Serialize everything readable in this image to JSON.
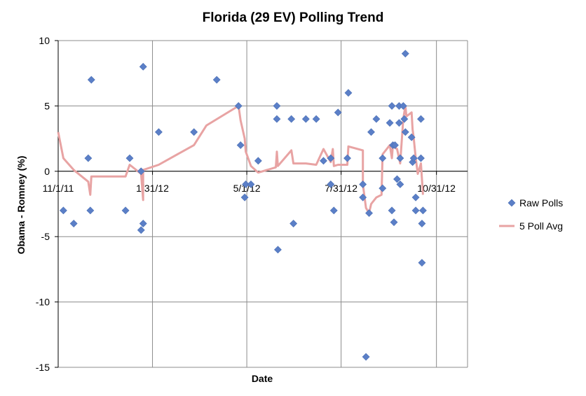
{
  "chart_data": {
    "type": "scatter",
    "title": "Florida (29 EV) Polling Trend",
    "xlabel": "Date",
    "ylabel": "Obama - Romney (%)",
    "ylim": [
      -15,
      10
    ],
    "y_ticks": [
      10,
      5,
      0,
      -5,
      -10,
      -15
    ],
    "y_tick_labels": [
      "10",
      "5",
      "0",
      "-5",
      "-10",
      "-15"
    ],
    "xlim": [
      "2011-11-01",
      "2012-11-30"
    ],
    "x_ticks": [
      "2011-11-01",
      "2012-01-31",
      "2012-05-01",
      "2012-07-31",
      "2012-10-31"
    ],
    "x_tick_labels": [
      "11/1/11",
      "1/31/12",
      "5/1/12",
      "7/31/12",
      "10/31/12"
    ],
    "grid": true,
    "legend_position": "right",
    "series": [
      {
        "name": "Raw Polls",
        "kind": "scatter",
        "color": "#5b7fc7",
        "points": [
          [
            "2011-11-06",
            -3
          ],
          [
            "2011-11-16",
            -4
          ],
          [
            "2011-11-30",
            1
          ],
          [
            "2011-12-02",
            -3
          ],
          [
            "2011-12-03",
            7
          ],
          [
            "2012-01-05",
            -3
          ],
          [
            "2012-01-09",
            1
          ],
          [
            "2012-01-20",
            0
          ],
          [
            "2012-01-20",
            -4.5
          ],
          [
            "2012-01-22",
            -4
          ],
          [
            "2012-01-22",
            8
          ],
          [
            "2012-02-06",
            3
          ],
          [
            "2012-03-11",
            3
          ],
          [
            "2012-04-02",
            7
          ],
          [
            "2012-04-23",
            5
          ],
          [
            "2012-04-25",
            2
          ],
          [
            "2012-04-29",
            -2
          ],
          [
            "2012-04-30",
            -1
          ],
          [
            "2012-05-05",
            -1
          ],
          [
            "2012-05-12",
            0.8
          ],
          [
            "2012-05-30",
            5
          ],
          [
            "2012-05-30",
            4
          ],
          [
            "2012-05-31",
            -6
          ],
          [
            "2012-06-13",
            4
          ],
          [
            "2012-06-15",
            -4
          ],
          [
            "2012-06-27",
            4
          ],
          [
            "2012-07-07",
            4
          ],
          [
            "2012-07-14",
            0.8
          ],
          [
            "2012-07-21",
            -1
          ],
          [
            "2012-07-21",
            1
          ],
          [
            "2012-07-24",
            -3
          ],
          [
            "2012-07-28",
            4.5
          ],
          [
            "2012-08-06",
            1
          ],
          [
            "2012-08-07",
            6
          ],
          [
            "2012-08-21",
            -1
          ],
          [
            "2012-08-21",
            -2
          ],
          [
            "2012-08-24",
            -14.2
          ],
          [
            "2012-08-27",
            -3.2
          ],
          [
            "2012-08-29",
            3
          ],
          [
            "2012-09-03",
            4
          ],
          [
            "2012-09-09",
            1
          ],
          [
            "2012-09-09",
            -1.3
          ],
          [
            "2012-09-16",
            3.7
          ],
          [
            "2012-09-18",
            -3
          ],
          [
            "2012-09-18",
            5
          ],
          [
            "2012-09-19",
            2
          ],
          [
            "2012-09-20",
            -3.9
          ],
          [
            "2012-09-21",
            2
          ],
          [
            "2012-09-23",
            -0.6
          ],
          [
            "2012-09-25",
            3.7
          ],
          [
            "2012-09-25",
            5
          ],
          [
            "2012-09-26",
            -1
          ],
          [
            "2012-09-26",
            1
          ],
          [
            "2012-09-29",
            5
          ],
          [
            "2012-09-30",
            4
          ],
          [
            "2012-10-01",
            3
          ],
          [
            "2012-10-01",
            9
          ],
          [
            "2012-10-07",
            2.6
          ],
          [
            "2012-10-08",
            0.7
          ],
          [
            "2012-10-09",
            1
          ],
          [
            "2012-10-11",
            -2
          ],
          [
            "2012-10-11",
            -3
          ],
          [
            "2012-10-16",
            1
          ],
          [
            "2012-10-16",
            4
          ],
          [
            "2012-10-17",
            -7
          ],
          [
            "2012-10-17",
            -4
          ],
          [
            "2012-10-18",
            -3
          ]
        ]
      },
      {
        "name": "5 Poll Avg",
        "kind": "line",
        "color": "#e8a3a3",
        "points": [
          [
            "2011-11-01",
            3
          ],
          [
            "2011-11-06",
            1
          ],
          [
            "2011-11-16",
            0.1
          ],
          [
            "2011-11-30",
            -0.8
          ],
          [
            "2011-12-02",
            -1.8
          ],
          [
            "2011-12-03",
            -0.4
          ],
          [
            "2012-01-05",
            -0.4
          ],
          [
            "2012-01-09",
            0.5
          ],
          [
            "2012-01-20",
            -0.2
          ],
          [
            "2012-01-22",
            -2.2
          ],
          [
            "2012-01-22",
            0.1
          ],
          [
            "2012-02-06",
            0.5
          ],
          [
            "2012-03-11",
            2
          ],
          [
            "2012-03-23",
            3.5
          ],
          [
            "2012-04-23",
            5
          ],
          [
            "2012-04-25",
            3.9
          ],
          [
            "2012-04-29",
            2.5
          ],
          [
            "2012-04-30",
            1.5
          ],
          [
            "2012-05-05",
            0.4
          ],
          [
            "2012-05-12",
            -0.1
          ],
          [
            "2012-05-29",
            0.3
          ],
          [
            "2012-05-30",
            1.5
          ],
          [
            "2012-05-31",
            0.4
          ],
          [
            "2012-06-13",
            1.6
          ],
          [
            "2012-06-15",
            0.6
          ],
          [
            "2012-06-27",
            0.6
          ],
          [
            "2012-07-07",
            0.5
          ],
          [
            "2012-07-14",
            1.7
          ],
          [
            "2012-07-21",
            0.7
          ],
          [
            "2012-07-23",
            1.7
          ],
          [
            "2012-07-24",
            0.4
          ],
          [
            "2012-07-28",
            0.5
          ],
          [
            "2012-08-06",
            0.5
          ],
          [
            "2012-08-07",
            1.9
          ],
          [
            "2012-08-21",
            1.6
          ],
          [
            "2012-08-21",
            -1
          ],
          [
            "2012-08-24",
            -2.8
          ],
          [
            "2012-08-27",
            -3.2
          ],
          [
            "2012-08-29",
            -2.5
          ],
          [
            "2012-09-03",
            -2
          ],
          [
            "2012-09-08",
            -1.8
          ],
          [
            "2012-09-09",
            1.3
          ],
          [
            "2012-09-16",
            2
          ],
          [
            "2012-09-18",
            1
          ],
          [
            "2012-09-19",
            2
          ],
          [
            "2012-09-21",
            1.8
          ],
          [
            "2012-09-23",
            1.7
          ],
          [
            "2012-09-26",
            0.6
          ],
          [
            "2012-09-29",
            4
          ],
          [
            "2012-10-01",
            5
          ],
          [
            "2012-10-02",
            4.2
          ],
          [
            "2012-10-07",
            4.5
          ],
          [
            "2012-10-08",
            3.2
          ],
          [
            "2012-10-09",
            2.6
          ],
          [
            "2012-10-11",
            1
          ],
          [
            "2012-10-13",
            -0.2
          ],
          [
            "2012-10-16",
            0.6
          ],
          [
            "2012-10-18",
            -1.8
          ]
        ]
      }
    ]
  }
}
